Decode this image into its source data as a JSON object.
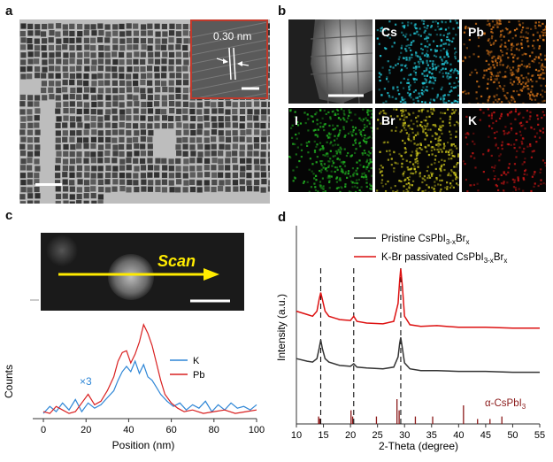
{
  "panel_labels": {
    "a": "a",
    "b": "b",
    "c": "c",
    "d": "d"
  },
  "panel_a": {
    "inset_spacing": "0.30 nm"
  },
  "panel_b": {
    "tiles": [
      {
        "label": "",
        "color": "#9a9a9a",
        "kind": "haadf"
      },
      {
        "label": "Cs",
        "color": "#22c4d4"
      },
      {
        "label": "Pb",
        "color": "#d1721a"
      },
      {
        "label": "I",
        "color": "#22b322"
      },
      {
        "label": "Br",
        "color": "#c9c31c"
      },
      {
        "label": "K",
        "color": "#c41616"
      }
    ]
  },
  "panel_c": {
    "scan_label": "Scan",
    "factor_label": "×3",
    "ylabel": "Counts",
    "xlabel": "Position (nm)",
    "legend": [
      "K",
      "Pb"
    ]
  },
  "panel_d": {
    "ylabel": "Intensity (a.u.)",
    "xlabel": "2-Theta (degree)",
    "legend": [
      {
        "base": "Pristine CsPbI",
        "sub": "3-x",
        "mid": "Br",
        "sub2": "x",
        "prefix": "",
        "color": "#333333"
      },
      {
        "base": "K-Br passivated CsPbI",
        "sub": "3-x",
        "mid": "Br",
        "sub2": "x",
        "color": "#dd1111"
      }
    ],
    "ref_label_alpha": "α-CsPbI",
    "ref_label_sub": "3",
    "dashed_positions": [
      14.5,
      20.6,
      29.3
    ]
  },
  "chart_data": [
    {
      "type": "line",
      "title": "",
      "xlabel": "Position (nm)",
      "ylabel": "Counts",
      "xlim": [
        -5,
        100
      ],
      "x_ticks": [
        0,
        20,
        40,
        60,
        80,
        100
      ],
      "series": [
        {
          "name": "K",
          "color": "#2e86d6",
          "x": [
            0,
            3,
            6,
            9,
            12,
            15,
            18,
            21,
            24,
            27,
            30,
            33,
            35,
            37,
            39,
            41,
            43,
            45,
            47,
            49,
            51,
            53,
            55,
            58,
            61,
            64,
            67,
            70,
            73,
            76,
            79,
            82,
            85,
            88,
            91,
            94,
            97,
            100
          ],
          "y": [
            3,
            7,
            4,
            9,
            5,
            11,
            4,
            9,
            6,
            8,
            12,
            16,
            22,
            27,
            30,
            27,
            33,
            26,
            31,
            24,
            22,
            18,
            14,
            10,
            7,
            9,
            5,
            8,
            6,
            10,
            4,
            8,
            5,
            9,
            6,
            7,
            5,
            8
          ]
        },
        {
          "name": "Pb",
          "color": "#d92020",
          "x": [
            0,
            3,
            6,
            9,
            12,
            15,
            18,
            21,
            24,
            27,
            30,
            33,
            35,
            37,
            39,
            41,
            43,
            45,
            47,
            49,
            51,
            53,
            55,
            57,
            60,
            63,
            66,
            70,
            75,
            80,
            85,
            90,
            95,
            100
          ],
          "y": [
            4,
            3,
            7,
            5,
            3,
            4,
            9,
            14,
            8,
            10,
            16,
            24,
            33,
            38,
            39,
            32,
            37,
            44,
            54,
            49,
            42,
            32,
            22,
            14,
            9,
            6,
            4,
            5,
            3,
            4,
            5,
            3,
            4,
            5
          ]
        }
      ]
    },
    {
      "type": "line",
      "title": "",
      "xlabel": "2-Theta (degree)",
      "ylabel": "Intensity (a.u.)",
      "xlim": [
        10,
        55
      ],
      "x_ticks": [
        10,
        15,
        20,
        25,
        30,
        35,
        40,
        45,
        50,
        55
      ],
      "series": [
        {
          "name": "Pristine CsPbI3-xBrx",
          "color": "#333333",
          "x": [
            10,
            12,
            13,
            13.8,
            14.2,
            14.5,
            14.8,
            15.3,
            16,
            18,
            20,
            20.6,
            21.2,
            23,
            26,
            28,
            28.8,
            29.1,
            29.3,
            29.6,
            30,
            31,
            33,
            36,
            40,
            45,
            50,
            55
          ],
          "y": [
            0.3,
            0.27,
            0.26,
            0.3,
            0.42,
            0.52,
            0.42,
            0.3,
            0.26,
            0.22,
            0.21,
            0.24,
            0.2,
            0.19,
            0.18,
            0.2,
            0.32,
            0.48,
            0.55,
            0.42,
            0.25,
            0.18,
            0.16,
            0.16,
            0.15,
            0.15,
            0.14,
            0.14
          ]
        },
        {
          "name": "K-Br passivated CsPbI3-xBrx",
          "color": "#dd1111",
          "x": [
            10,
            12,
            13,
            13.8,
            14.2,
            14.5,
            14.8,
            15.3,
            16,
            18,
            20,
            20.6,
            21.2,
            23,
            26,
            28,
            28.8,
            29.1,
            29.3,
            29.6,
            30,
            31,
            33,
            36,
            40,
            45,
            50,
            55
          ],
          "y": [
            0.86,
            0.82,
            0.8,
            0.86,
            1.0,
            1.08,
            1.0,
            0.86,
            0.8,
            0.76,
            0.75,
            0.8,
            0.74,
            0.72,
            0.71,
            0.74,
            0.95,
            1.22,
            1.36,
            1.15,
            0.8,
            0.7,
            0.68,
            0.69,
            0.67,
            0.67,
            0.66,
            0.66
          ]
        }
      ],
      "reference_peaks": {
        "name": "α-CsPbI3",
        "color": "#8b1a1a",
        "x": [
          14.1,
          14.3,
          20.1,
          20.4,
          24.8,
          28.6,
          29.0,
          32.0,
          35.2,
          40.9,
          43.5,
          45.8,
          48.0
        ],
        "h": [
          0.3,
          0.22,
          0.55,
          0.3,
          0.3,
          1.0,
          0.55,
          0.3,
          0.3,
          0.75,
          0.2,
          0.2,
          0.3
        ]
      }
    }
  ]
}
